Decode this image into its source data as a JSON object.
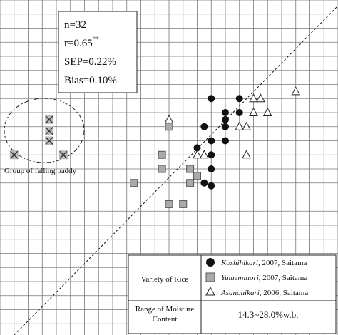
{
  "chart_data": {
    "type": "scatter",
    "title": "",
    "xlabel": "",
    "ylabel": "",
    "grid": true,
    "grid_cols": 24,
    "grid_rows": 24,
    "diagonal": "1:1 dashed reference line",
    "stats": {
      "n": "n=32",
      "r": "r=0.65",
      "r_sup": "**",
      "sep": "SEP=0.22%",
      "bias": "Bias=0.10%"
    },
    "group_label": "Group of falling paddy",
    "series": [
      {
        "name": "Koshihikari",
        "marker": "filled-circle",
        "points": [
          [
            15,
            7
          ],
          [
            17,
            7
          ],
          [
            16,
            8
          ],
          [
            17,
            8
          ],
          [
            14.5,
            9
          ],
          [
            16,
            9
          ],
          [
            15,
            10
          ],
          [
            16,
            10
          ],
          [
            14,
            10.5
          ],
          [
            15,
            11
          ],
          [
            15,
            12
          ],
          [
            14.5,
            13
          ],
          [
            15,
            13.2
          ],
          [
            16,
            8.5
          ]
        ]
      },
      {
        "name": "Yumeminori",
        "marker": "gray-square",
        "points": [
          [
            12,
            9
          ],
          [
            11.5,
            11
          ],
          [
            11.5,
            12
          ],
          [
            9.5,
            13
          ],
          [
            13.5,
            13
          ],
          [
            14,
            12.5
          ],
          [
            12,
            14.5
          ],
          [
            13,
            14.5
          ],
          [
            13.5,
            12
          ]
        ]
      },
      {
        "name": "Asanohikari",
        "marker": "open-triangle",
        "points": [
          [
            12,
            8.5
          ],
          [
            18,
            7
          ],
          [
            18.5,
            7
          ],
          [
            19,
            8
          ],
          [
            18,
            8
          ],
          [
            17.5,
            9
          ],
          [
            17,
            9
          ],
          [
            14,
            11
          ],
          [
            14.5,
            11
          ],
          [
            17.5,
            11
          ],
          [
            21,
            6.5
          ]
        ]
      },
      {
        "name": "Group of falling paddy",
        "marker": "gray-cross",
        "points": [
          [
            3.5,
            8.5
          ],
          [
            3.5,
            9.3
          ],
          [
            3.5,
            10
          ],
          [
            1,
            11
          ],
          [
            4.5,
            11
          ]
        ]
      }
    ],
    "legend": {
      "row_label": "Variety of Rice",
      "entries": [
        {
          "italic": "Koshihikari",
          "rest": ", 2007, Saitama"
        },
        {
          "italic": "Yumeminori",
          "rest": ", 2007, Saitama"
        },
        {
          "italic": "Asanohikari",
          "rest": ", 2006, Saitama"
        }
      ],
      "range_label_1": "Range of Moisture",
      "range_label_2": "Content",
      "range_value": "14.3~28.0%w.b."
    }
  }
}
